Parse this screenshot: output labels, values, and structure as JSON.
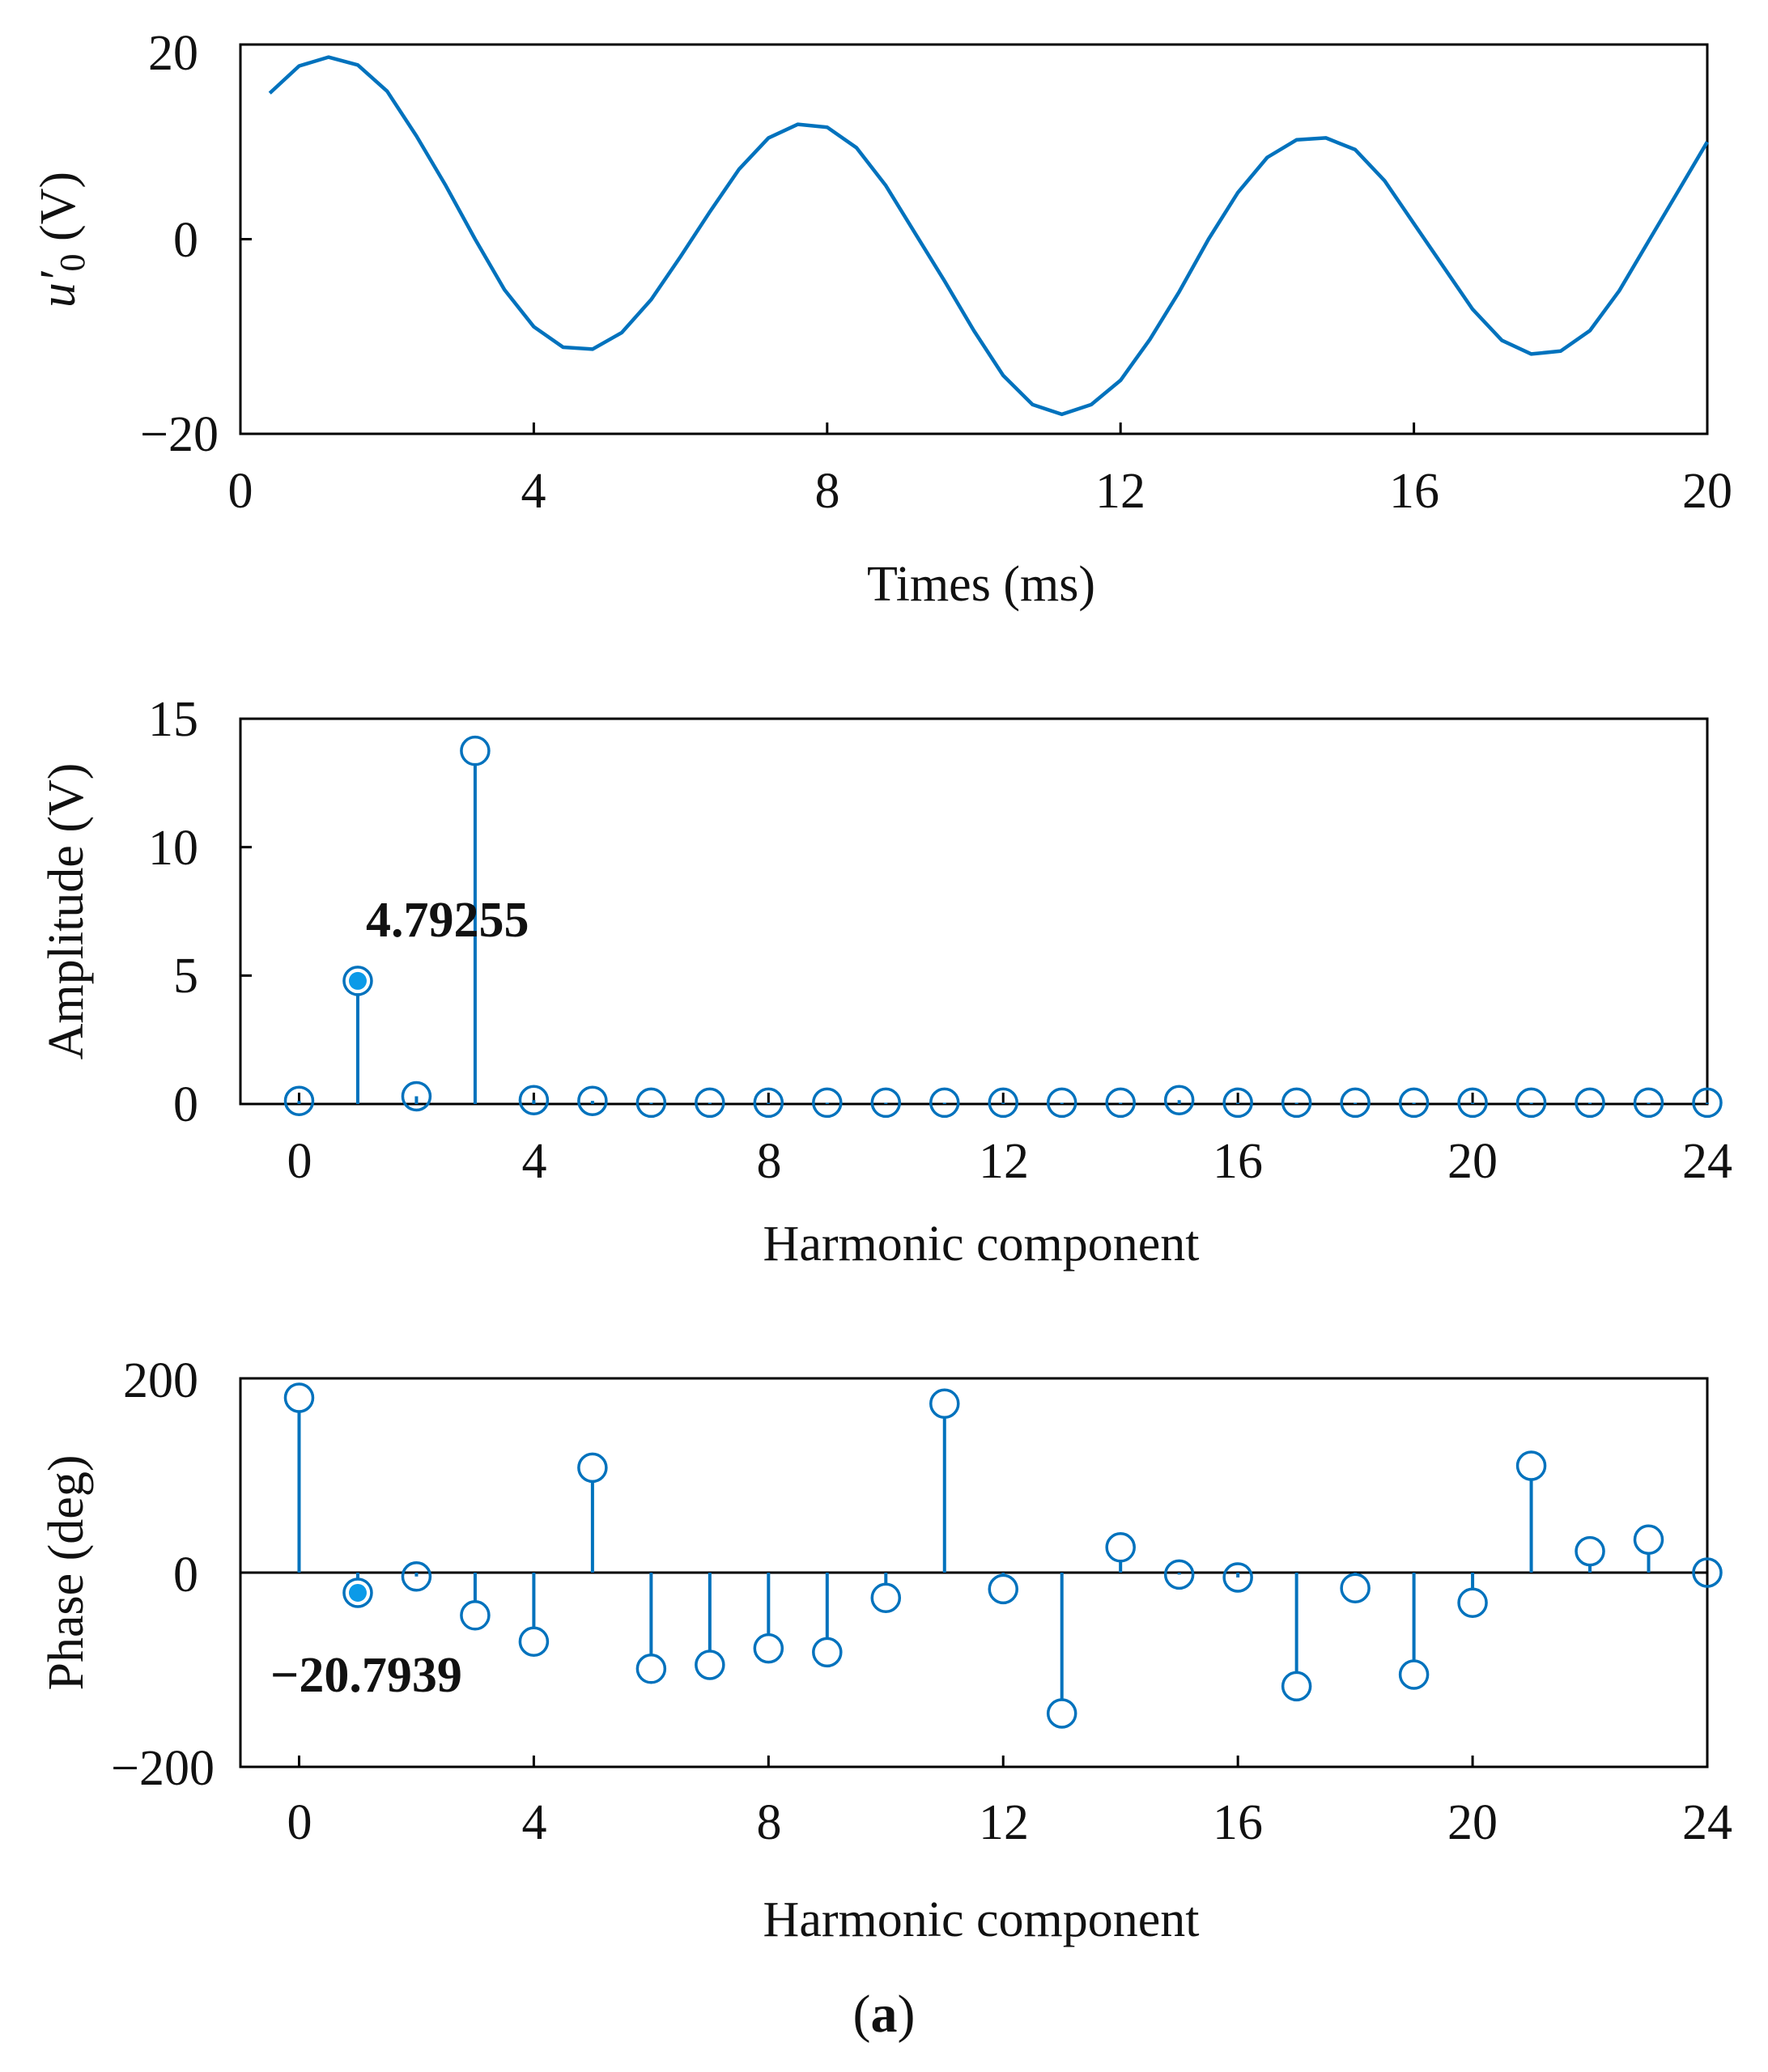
{
  "figure": {
    "caption_letter": "a",
    "caption_open": "(",
    "caption_close": ")"
  },
  "colors": {
    "series": "#0072bd",
    "highlight": "#0b9ae8",
    "axis": "#000000"
  },
  "chart_data": [
    {
      "type": "line",
      "id": "waveform",
      "title": "",
      "xlabel": "Times (ms)",
      "ylabel_main": "u′",
      "ylabel_sub": "0",
      "ylabel_unit": " (V)",
      "xlim": [
        0,
        20
      ],
      "ylim": [
        -20,
        20
      ],
      "xticks": [
        0,
        4,
        8,
        12,
        16,
        20
      ],
      "yticks": [
        -20,
        0,
        20
      ],
      "xtick_labels": [
        "0",
        "4",
        "8",
        "12",
        "16",
        "20"
      ],
      "ytick_labels": [
        "−20",
        "0",
        "20"
      ],
      "grid": false,
      "x": [
        0.4,
        0.8,
        1.2,
        1.6,
        2.0,
        2.4,
        2.8,
        3.2,
        3.6,
        4.0,
        4.4,
        4.8,
        5.2,
        5.6,
        6.0,
        6.4,
        6.8,
        7.2,
        7.6,
        8.0,
        8.4,
        8.8,
        9.2,
        9.6,
        10.0,
        10.4,
        10.8,
        11.2,
        11.6,
        12.0,
        12.4,
        12.8,
        13.2,
        13.6,
        14.0,
        14.4,
        14.8,
        15.2,
        15.6,
        16.0,
        16.4,
        16.8,
        17.2,
        17.6,
        18.0,
        18.4,
        18.8,
        19.2,
        19.6,
        20.0
      ],
      "y": [
        15.0,
        17.8,
        18.7,
        17.9,
        15.2,
        10.6,
        5.5,
        0.0,
        -5.2,
        -9.0,
        -11.1,
        -11.3,
        -9.6,
        -6.2,
        -1.8,
        2.8,
        7.2,
        10.4,
        11.8,
        11.5,
        9.4,
        5.5,
        0.6,
        -4.3,
        -9.4,
        -14.0,
        -17.0,
        -18.0,
        -17.0,
        -14.5,
        -10.3,
        -5.4,
        0.0,
        4.8,
        8.4,
        10.2,
        10.4,
        9.2,
        6.0,
        1.6,
        -2.8,
        -7.2,
        -10.4,
        -11.8,
        -11.5,
        -9.4,
        -5.3,
        -0.2,
        4.9,
        10.0
      ]
    },
    {
      "type": "stem",
      "id": "amplitude",
      "title": "",
      "xlabel": "Harmonic component",
      "ylabel": "Amplitude (V)",
      "xlim": [
        -1,
        24
      ],
      "ylim": [
        0,
        15
      ],
      "xticks": [
        0,
        4,
        8,
        12,
        16,
        20,
        24
      ],
      "yticks": [
        0,
        5,
        10,
        15
      ],
      "xtick_labels": [
        "0",
        "4",
        "8",
        "12",
        "16",
        "20",
        "24"
      ],
      "ytick_labels": [
        "0",
        "5",
        "10",
        "15"
      ],
      "grid": false,
      "x": [
        0,
        1,
        2,
        3,
        4,
        5,
        6,
        7,
        8,
        9,
        10,
        11,
        12,
        13,
        14,
        15,
        16,
        17,
        18,
        19,
        20,
        21,
        22,
        23,
        24
      ],
      "y": [
        0.12,
        4.79255,
        0.3,
        13.75,
        0.15,
        0.12,
        0.05,
        0.05,
        0.05,
        0.05,
        0.05,
        0.05,
        0.05,
        0.05,
        0.05,
        0.15,
        0.05,
        0.05,
        0.05,
        0.05,
        0.05,
        0.05,
        0.05,
        0.05,
        0.05
      ],
      "highlight_index": 1,
      "annotation": "4.79255"
    },
    {
      "type": "stem",
      "id": "phase",
      "title": "",
      "xlabel": "Harmonic component",
      "ylabel": "Phase (deg)",
      "xlim": [
        -1,
        24
      ],
      "ylim": [
        -200,
        200
      ],
      "xticks": [
        0,
        4,
        8,
        12,
        16,
        20,
        24
      ],
      "yticks": [
        -200,
        0,
        200
      ],
      "xtick_labels": [
        "0",
        "4",
        "8",
        "12",
        "16",
        "20",
        "24"
      ],
      "ytick_labels": [
        "−200",
        "0",
        "200"
      ],
      "grid": false,
      "x": [
        0,
        1,
        2,
        3,
        4,
        5,
        6,
        7,
        8,
        9,
        10,
        11,
        12,
        13,
        14,
        15,
        16,
        17,
        18,
        19,
        20,
        21,
        22,
        23,
        24
      ],
      "y": [
        180,
        -20.7939,
        -4,
        -44,
        -71,
        108,
        -99,
        -95,
        -78,
        -82,
        -26,
        174,
        -17,
        -145,
        26,
        -2,
        -5,
        -117,
        -16,
        -105,
        -31,
        110,
        22,
        34,
        0
      ],
      "highlight_index": 1,
      "annotation": "−20.7939"
    }
  ]
}
